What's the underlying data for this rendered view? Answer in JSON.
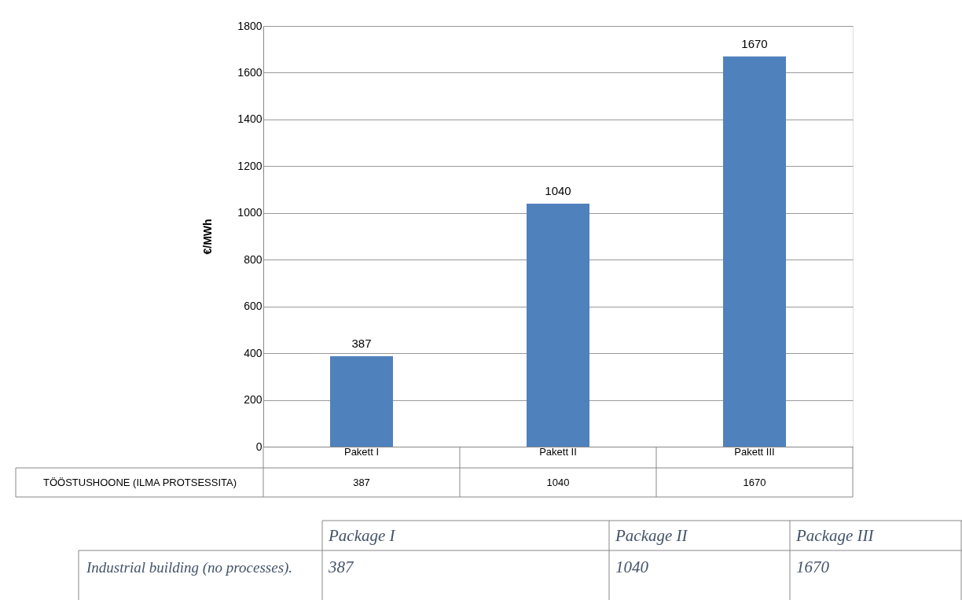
{
  "chart_data": {
    "type": "bar",
    "ylabel": "€/MWh",
    "categories": [
      "Pakett I",
      "Pakett II",
      "Pakett III"
    ],
    "values": [
      387,
      1040,
      1670
    ],
    "color": "#4f81bd",
    "ylim": [
      0,
      1800
    ],
    "yticks": [
      0,
      200,
      400,
      600,
      800,
      1000,
      1200,
      1400,
      1600,
      1800
    ],
    "grid": "y",
    "data_labels": true,
    "annotations": [
      "TÖÖSTUSHOONE (ILMA PROTSESSITA)",
      "Package I",
      "Package II",
      "Package III",
      "Industrial building (no processes).",
      "387",
      "1040",
      "1670"
    ]
  }
}
